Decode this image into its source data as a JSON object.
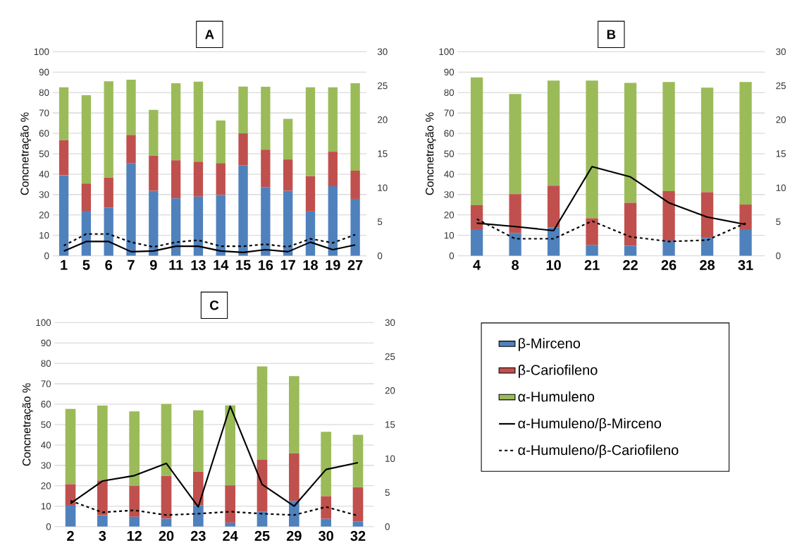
{
  "chart_data": [
    {
      "type": "bar",
      "stacked": true,
      "title": "A",
      "ylabel": "Concnetração %",
      "grid": "y",
      "categories": [
        "1",
        "5",
        "6",
        "7",
        "9",
        "11",
        "13",
        "14",
        "15",
        "16",
        "17",
        "18",
        "19",
        "27"
      ],
      "ylim": [
        0,
        100
      ],
      "yticks": [
        0,
        10,
        20,
        30,
        40,
        50,
        60,
        70,
        80,
        90,
        100
      ],
      "y2lim": [
        0,
        30
      ],
      "y2ticks": [
        0,
        5,
        10,
        15,
        20,
        25,
        30
      ],
      "series": [
        {
          "type": "bar",
          "color": "#4f81bd",
          "values": [
            39.5,
            22,
            23.5,
            45.4,
            31.8,
            28.1,
            29,
            29.8,
            44.4,
            33.7,
            31.8,
            21.7,
            34.1,
            27.9
          ]
        },
        {
          "type": "bar",
          "color": "#c0504d",
          "values": [
            17.2,
            13.4,
            14.8,
            13.8,
            17.3,
            18.7,
            17.1,
            15.6,
            15.6,
            18.3,
            15.4,
            17.3,
            16.9,
            13.8
          ]
        },
        {
          "type": "bar",
          "color": "#9bbb59",
          "values": [
            25.9,
            43.3,
            47.2,
            27.1,
            22.4,
            37.8,
            39.2,
            20.9,
            22.9,
            30.8,
            19.9,
            43.6,
            31.6,
            42.9
          ]
        },
        {
          "type": "line",
          "axis": "y2",
          "line_style": "solid",
          "color": "#000000",
          "values": [
            0.7,
            2.1,
            2.1,
            0.6,
            0.7,
            1.4,
            1.4,
            0.7,
            0.5,
            0.9,
            0.6,
            2.0,
            0.9,
            1.6
          ]
        },
        {
          "type": "line",
          "axis": "y2",
          "line_style": "dashed",
          "color": "#000000",
          "values": [
            1.5,
            3.2,
            3.2,
            2.0,
            1.3,
            2.0,
            2.3,
            1.4,
            1.4,
            1.7,
            1.3,
            2.5,
            1.9,
            3.1
          ]
        }
      ]
    },
    {
      "type": "bar",
      "stacked": true,
      "title": "B",
      "ylabel": "Concnetração %",
      "grid": "y",
      "categories": [
        "4",
        "8",
        "10",
        "21",
        "22",
        "26",
        "28",
        "31"
      ],
      "ylim": [
        0,
        100
      ],
      "yticks": [
        0,
        10,
        20,
        30,
        40,
        50,
        60,
        70,
        80,
        90,
        100
      ],
      "y2lim": [
        0,
        30
      ],
      "y2ticks": [
        0,
        5,
        10,
        15,
        20,
        25,
        30
      ],
      "series": [
        {
          "type": "bar",
          "color": "#4f81bd",
          "values": [
            13,
            11.2,
            14,
            5.2,
            4.9,
            7.5,
            8.8,
            13
          ]
        },
        {
          "type": "bar",
          "color": "#c0504d",
          "values": [
            11.8,
            19,
            20.4,
            13.2,
            21.1,
            24.2,
            22.4,
            12.1
          ]
        },
        {
          "type": "bar",
          "color": "#9bbb59",
          "values": [
            62.6,
            49.1,
            51.5,
            67.5,
            58.7,
            53.5,
            51.2,
            60.1
          ]
        },
        {
          "type": "line",
          "axis": "y2",
          "line_style": "solid",
          "color": "#000000",
          "values": [
            4.8,
            4.3,
            3.7,
            13.1,
            11.6,
            7.8,
            5.7,
            4.6
          ]
        },
        {
          "type": "line",
          "axis": "y2",
          "line_style": "dashed",
          "color": "#000000",
          "values": [
            5.4,
            2.5,
            2.5,
            5.1,
            2.8,
            2.1,
            2.3,
            4.8
          ]
        }
      ]
    },
    {
      "type": "bar",
      "stacked": true,
      "title": "C",
      "ylabel": "Concnetração %",
      "grid": "y",
      "legend": "right",
      "categories": [
        "2",
        "3",
        "12",
        "20",
        "23",
        "24",
        "25",
        "29",
        "30",
        "32"
      ],
      "ylim": [
        0,
        100
      ],
      "yticks": [
        0,
        10,
        20,
        30,
        40,
        50,
        60,
        70,
        80,
        90,
        100
      ],
      "y2lim": [
        0,
        30
      ],
      "y2ticks": [
        0,
        5,
        10,
        15,
        20,
        25,
        30
      ],
      "series": [
        {
          "type": "bar",
          "name": "β-Mirceno",
          "color": "#4f81bd",
          "values": [
            10.6,
            5.6,
            4.8,
            3.9,
            10.4,
            2,
            7.2,
            12.6,
            3.8,
            2.6
          ]
        },
        {
          "type": "bar",
          "name": "β-Cariofileno",
          "color": "#c0504d",
          "values": [
            10.2,
            17,
            15.2,
            21,
            16.5,
            18.2,
            25.5,
            23.3,
            11.1,
            16.7
          ]
        },
        {
          "type": "bar",
          "name": "α-Humuleno",
          "color": "#9bbb59",
          "values": [
            36.9,
            36.7,
            36.5,
            35.2,
            30.1,
            39.2,
            45.8,
            37.9,
            31.6,
            25.7
          ]
        },
        {
          "type": "line",
          "axis": "y2",
          "name": "α-Humuleno/β-Mirceno",
          "line_style": "solid",
          "color": "#000000",
          "values": [
            3.4,
            6.7,
            7.5,
            9.3,
            2.9,
            17.7,
            6.2,
            3.0,
            8.4,
            9.4
          ]
        },
        {
          "type": "line",
          "axis": "y2",
          "name": "α-Humuleno/β-Cariofileno",
          "line_style": "dashed",
          "color": "#000000",
          "values": [
            3.8,
            2.1,
            2.4,
            1.7,
            1.9,
            2.2,
            1.9,
            1.7,
            2.9,
            1.6
          ]
        }
      ]
    }
  ]
}
